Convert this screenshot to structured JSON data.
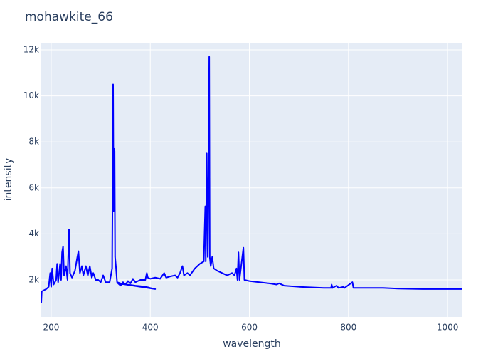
{
  "chart_data": {
    "type": "line",
    "title": "mohawkite_66",
    "x_label": "wavelength",
    "y_label": "intensity",
    "color": "#0000ff",
    "grid": true,
    "xlim": [
      180,
      1030
    ],
    "ylim": [
      390,
      12310
    ],
    "xticks": [
      200,
      400,
      600,
      800,
      1000
    ],
    "yticks": [
      {
        "value": 2000,
        "label": "2k"
      },
      {
        "value": 4000,
        "label": "4k"
      },
      {
        "value": 6000,
        "label": "6k"
      },
      {
        "value": 8000,
        "label": "8k"
      },
      {
        "value": 10000,
        "label": "10k"
      },
      {
        "value": 12000,
        "label": "12k"
      }
    ],
    "x": [
      180,
      181,
      190,
      195,
      198,
      200,
      202,
      205,
      210,
      212,
      214,
      218,
      220,
      222,
      224,
      226,
      230,
      233,
      236,
      238,
      242,
      248,
      252,
      255,
      258,
      262,
      265,
      270,
      274,
      278,
      282,
      285,
      290,
      295,
      300,
      305,
      310,
      318,
      323,
      325,
      326,
      327,
      328,
      329,
      331,
      333,
      340,
      350,
      360,
      370,
      380,
      390,
      395,
      400,
      410,
      335,
      340,
      345,
      350,
      355,
      360,
      365,
      370,
      380,
      390,
      393,
      395,
      400,
      410,
      420,
      428,
      432,
      440,
      450,
      455,
      460,
      465,
      468,
      475,
      480,
      490,
      500,
      508,
      511,
      512,
      514,
      516,
      518,
      519,
      520,
      522,
      525,
      528,
      535,
      545,
      555,
      565,
      570,
      574,
      576,
      578,
      580,
      588,
      590,
      600,
      620,
      640,
      655,
      660,
      670,
      700,
      750,
      765,
      766,
      768,
      776,
      780,
      790,
      792,
      808,
      810,
      850,
      870,
      900,
      950,
      1000,
      1030
    ],
    "values": [
      1000,
      1500,
      1600,
      1700,
      2300,
      1700,
      2500,
      1800,
      2000,
      2700,
      1900,
      2700,
      2000,
      3200,
      3450,
      2200,
      2600,
      2000,
      4200,
      2300,
      2100,
      2400,
      2900,
      3250,
      2300,
      2600,
      2200,
      2600,
      2200,
      2600,
      2100,
      2300,
      2000,
      2000,
      1900,
      2200,
      1900,
      1900,
      2500,
      10500,
      5000,
      7700,
      7600,
      3000,
      2500,
      1900,
      1850,
      1800,
      1780,
      1750,
      1730,
      1700,
      1680,
      1650,
      1600,
      1850,
      1750,
      1900,
      1800,
      1950,
      1850,
      2050,
      1900,
      2000,
      2000,
      2300,
      2100,
      2050,
      2100,
      2050,
      2300,
      2100,
      2150,
      2200,
      2100,
      2300,
      2600,
      2200,
      2300,
      2200,
      2500,
      2700,
      2800,
      5200,
      2800,
      7500,
      3000,
      8000,
      11700,
      3000,
      2600,
      3000,
      2500,
      2400,
      2300,
      2200,
      2300,
      2200,
      2500,
      2000,
      3200,
      2000,
      3400,
      2000,
      1950,
      1900,
      1850,
      1800,
      1850,
      1750,
      1700,
      1650,
      1650,
      1800,
      1650,
      1750,
      1650,
      1700,
      1650,
      1900,
      1650,
      1650,
      1650,
      1620,
      1600,
      1600,
      1600
    ]
  }
}
